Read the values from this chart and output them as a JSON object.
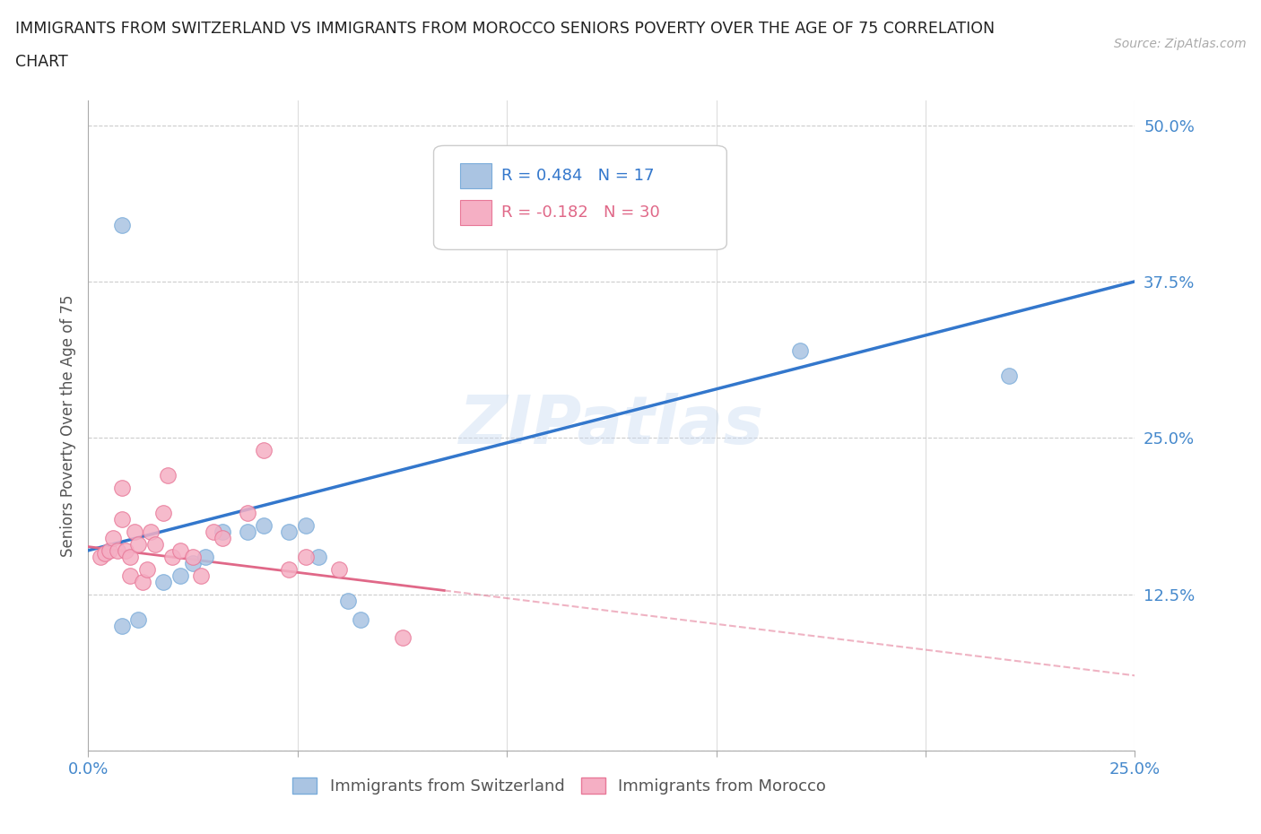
{
  "title_line1": "IMMIGRANTS FROM SWITZERLAND VS IMMIGRANTS FROM MOROCCO SENIORS POVERTY OVER THE AGE OF 75 CORRELATION",
  "title_line2": "CHART",
  "source": "Source: ZipAtlas.com",
  "ylabel": "Seniors Poverty Over the Age of 75",
  "xlim": [
    0.0,
    0.25
  ],
  "ylim": [
    0.0,
    0.52
  ],
  "xticks": [
    0.0,
    0.05,
    0.1,
    0.15,
    0.2,
    0.25
  ],
  "yticks": [
    0.0,
    0.125,
    0.25,
    0.375,
    0.5
  ],
  "ytick_labels": [
    "",
    "12.5%",
    "25.0%",
    "37.5%",
    "50.0%"
  ],
  "xtick_labels": [
    "0.0%",
    "",
    "",
    "",
    "",
    "25.0%"
  ],
  "switzerland_color": "#aac4e2",
  "morocco_color": "#f5afc4",
  "switzerland_edge": "#7aacda",
  "morocco_edge": "#e87898",
  "trend_switzerland_color": "#3377cc",
  "trend_morocco_color": "#e06888",
  "watermark": "ZIPatlas",
  "switzerland_x": [
    0.008,
    0.012,
    0.018,
    0.022,
    0.025,
    0.028,
    0.032,
    0.038,
    0.042,
    0.048,
    0.052,
    0.055,
    0.062,
    0.065,
    0.17,
    0.22,
    0.008
  ],
  "switzerland_y": [
    0.1,
    0.105,
    0.135,
    0.14,
    0.15,
    0.155,
    0.175,
    0.175,
    0.18,
    0.175,
    0.18,
    0.155,
    0.12,
    0.105,
    0.32,
    0.3,
    0.42
  ],
  "morocco_x": [
    0.003,
    0.004,
    0.005,
    0.006,
    0.007,
    0.008,
    0.008,
    0.009,
    0.01,
    0.01,
    0.011,
    0.012,
    0.013,
    0.014,
    0.015,
    0.016,
    0.018,
    0.019,
    0.02,
    0.022,
    0.025,
    0.027,
    0.03,
    0.032,
    0.038,
    0.042,
    0.048,
    0.052,
    0.06,
    0.075
  ],
  "morocco_y": [
    0.155,
    0.158,
    0.16,
    0.17,
    0.16,
    0.21,
    0.185,
    0.16,
    0.155,
    0.14,
    0.175,
    0.165,
    0.135,
    0.145,
    0.175,
    0.165,
    0.19,
    0.22,
    0.155,
    0.16,
    0.155,
    0.14,
    0.175,
    0.17,
    0.19,
    0.24,
    0.145,
    0.155,
    0.145,
    0.09
  ],
  "background_color": "#ffffff",
  "grid_color": "#dddddd",
  "sw_trend_x0": 0.0,
  "sw_trend_y0": 0.16,
  "sw_trend_x1": 0.25,
  "sw_trend_y1": 0.375,
  "mo_trend_x0": 0.0,
  "mo_trend_y0": 0.163,
  "mo_trend_x1": 0.085,
  "mo_trend_y1": 0.128,
  "mo_trend_dash_x0": 0.085,
  "mo_trend_dash_y0": 0.128,
  "mo_trend_dash_x1": 0.25,
  "mo_trend_dash_y1": 0.06
}
